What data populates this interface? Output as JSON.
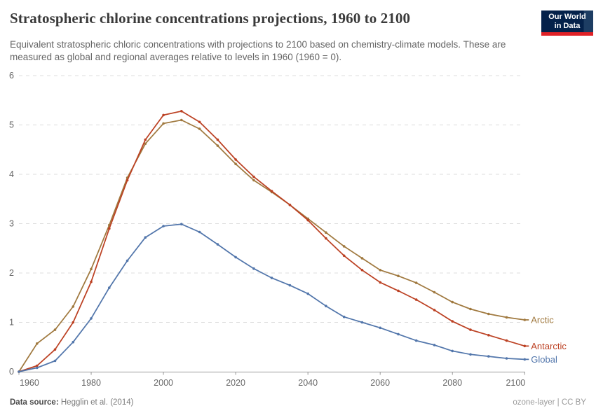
{
  "header": {
    "title": "Stratospheric chlorine concentrations projections, 1960 to 2100",
    "subtitle": "Equivalent stratospheric chloric concentrations with projections to 2100 based on chemistry-climate models. These are measured as global and regional averages relative to levels in 1960 (1960 = 0).",
    "logo": {
      "line1": "Our World",
      "line2": "in Data",
      "bg_color": "#04214a",
      "accent_color": "#e02126"
    }
  },
  "footer": {
    "source_label": "Data source:",
    "source_value": "Hegglin et al. (2014)",
    "note_right": "ozone-layer | CC BY"
  },
  "chart_data": {
    "type": "line",
    "title": "Stratospheric chlorine concentrations projections, 1960 to 2100",
    "xlabel": "",
    "ylabel": "",
    "ylim": [
      0,
      6
    ],
    "yticks": [
      0,
      1,
      2,
      3,
      4,
      5,
      6
    ],
    "xticks": [
      1960,
      1980,
      2000,
      2020,
      2040,
      2060,
      2080,
      2100
    ],
    "grid": "horizontal-dashed",
    "legend_position": "end-labels-right",
    "axis_color": "#9a9a9a",
    "grid_color": "#dcdcdc",
    "x": [
      1960,
      1965,
      1970,
      1975,
      1980,
      1985,
      1990,
      1995,
      2000,
      2005,
      2010,
      2015,
      2020,
      2025,
      2030,
      2035,
      2040,
      2045,
      2050,
      2055,
      2060,
      2065,
      2070,
      2075,
      2080,
      2085,
      2090,
      2095,
      2100
    ],
    "series": [
      {
        "name": "Arctic",
        "color": "#a0793f",
        "values": [
          0,
          0.57,
          0.85,
          1.32,
          2.08,
          2.97,
          3.93,
          4.62,
          5.03,
          5.1,
          4.92,
          4.58,
          4.21,
          3.88,
          3.64,
          3.38,
          3.1,
          2.82,
          2.54,
          2.3,
          2.06,
          1.94,
          1.8,
          1.61,
          1.41,
          1.27,
          1.17,
          1.1,
          1.05
        ]
      },
      {
        "name": "Antarctic",
        "color": "#bc4123",
        "values": [
          0,
          0.12,
          0.45,
          1.0,
          1.82,
          2.9,
          3.88,
          4.7,
          5.2,
          5.28,
          5.06,
          4.7,
          4.3,
          3.95,
          3.66,
          3.38,
          3.07,
          2.7,
          2.35,
          2.06,
          1.81,
          1.64,
          1.46,
          1.25,
          1.02,
          0.85,
          0.74,
          0.63,
          0.52
        ]
      },
      {
        "name": "Global",
        "color": "#5276ab",
        "values": [
          0,
          0.08,
          0.22,
          0.6,
          1.08,
          1.7,
          2.25,
          2.72,
          2.95,
          2.99,
          2.83,
          2.58,
          2.32,
          2.09,
          1.9,
          1.75,
          1.58,
          1.33,
          1.11,
          1.0,
          0.89,
          0.76,
          0.63,
          0.54,
          0.42,
          0.35,
          0.31,
          0.27,
          0.25
        ]
      }
    ]
  }
}
